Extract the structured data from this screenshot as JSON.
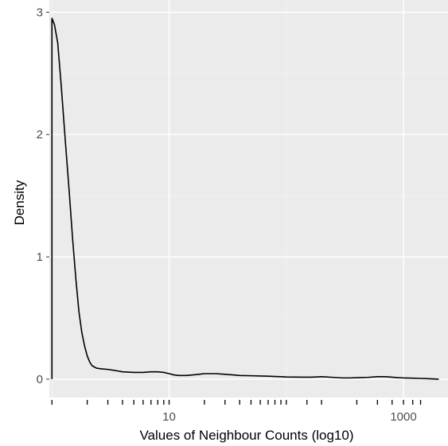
{
  "chart_data": {
    "type": "line",
    "title": "",
    "xlabel": "Values of Neighbour Counts (log10)",
    "ylabel": "Density",
    "x_scale": "log10",
    "xlim": [
      0.95,
      2400
    ],
    "ylim": [
      -0.15,
      3.1
    ],
    "x_ticks": [
      {
        "value": 10,
        "label": "10"
      },
      {
        "value": 1000,
        "label": "1000"
      }
    ],
    "y_ticks": [
      {
        "value": 0,
        "label": "0"
      },
      {
        "value": 1,
        "label": "1"
      },
      {
        "value": 2,
        "label": "2"
      },
      {
        "value": 3,
        "label": "3"
      }
    ],
    "grid": true,
    "rug": true,
    "colors": {
      "panel": "#ebebeb",
      "grid_major": "#ffffff",
      "grid_minor": "#f5f5f5",
      "line": "#000000",
      "text": "#4d4d4d"
    },
    "series": [
      {
        "x": [
          1,
          1,
          1.05,
          1.12,
          1.2,
          1.3,
          1.4,
          1.5,
          1.6,
          1.7,
          1.8,
          1.9,
          2,
          2.1,
          2.2,
          2.4,
          2.6,
          3,
          3.5,
          4,
          5,
          6,
          7,
          8,
          9,
          10,
          11,
          12,
          14,
          16,
          18,
          20,
          25,
          30,
          35,
          40,
          50,
          60,
          70,
          80,
          90,
          100,
          120,
          140,
          160,
          180,
          200,
          250,
          300,
          350,
          400,
          500,
          600,
          700,
          800,
          900,
          1000,
          1200,
          1400,
          1600,
          2000
        ],
        "y": [
          0,
          2.95,
          2.9,
          2.75,
          2.4,
          1.95,
          1.55,
          1.15,
          0.82,
          0.55,
          0.38,
          0.27,
          0.19,
          0.14,
          0.11,
          0.09,
          0.085,
          0.08,
          0.07,
          0.06,
          0.055,
          0.055,
          0.06,
          0.06,
          0.055,
          0.045,
          0.035,
          0.03,
          0.03,
          0.035,
          0.04,
          0.045,
          0.045,
          0.04,
          0.035,
          0.03,
          0.028,
          0.026,
          0.024,
          0.022,
          0.02,
          0.018,
          0.017,
          0.016,
          0.016,
          0.018,
          0.02,
          0.015,
          0.01,
          0.01,
          0.012,
          0.015,
          0.02,
          0.02,
          0.016,
          0.012,
          0.01,
          0.008,
          0.006,
          0.004,
          0.0
        ]
      }
    ],
    "rug_x": [
      1,
      2,
      3,
      4,
      5,
      6,
      7,
      8,
      9,
      10,
      20,
      30,
      40,
      50,
      60,
      70,
      80,
      90,
      100,
      150,
      200,
      400,
      600,
      800,
      1000,
      1200,
      1400
    ]
  }
}
